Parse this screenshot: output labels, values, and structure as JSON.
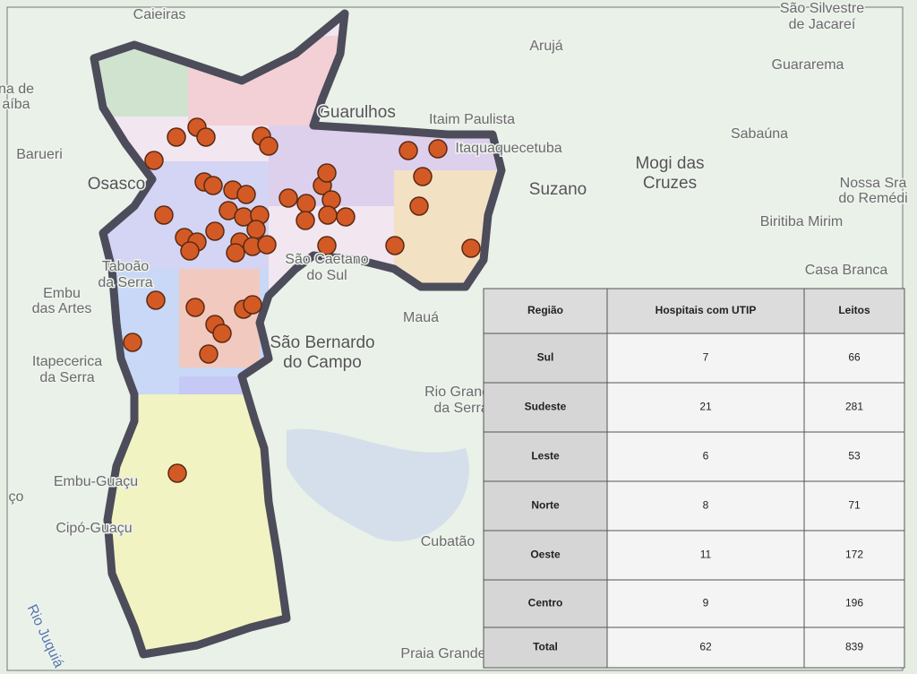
{
  "map": {
    "labels": [
      "Caieiras",
      "São Silvestre",
      "de Jacareí",
      "Arujá",
      "Guararema",
      "na de",
      "aíba",
      "Guarulhos",
      "Itaim Paulista",
      "Itaquaquecetuba",
      "Sabaúna",
      "Barueri",
      "Mogi das",
      "Cruzes",
      "Osasco",
      "Suzano",
      "Nossa Sra",
      "do Remédi",
      "Biritiba Mirim",
      "Casa Branca",
      "Taboão",
      "da Serra",
      "São Caetano",
      "do Sul",
      "Embu",
      "das Artes",
      "Mauá",
      "São Bernardo",
      "do Campo",
      "Itapecerica",
      "da Serra",
      "Rio Grande",
      "da Serra",
      "Embu-Guaçu",
      "ço",
      "Cipó-Guaçu",
      "Cubatão",
      "Praia Grande",
      "Rio Juquiá"
    ]
  },
  "table": {
    "header": [
      "Região",
      "Hospitais com UTIP",
      "Leitos"
    ],
    "rows": [
      [
        "Sul",
        7,
        66
      ],
      [
        "Sudeste",
        21,
        281
      ],
      [
        "Leste",
        6,
        53
      ],
      [
        "Norte",
        8,
        71
      ],
      [
        "Oeste",
        11,
        172
      ],
      [
        "Centro",
        9,
        196
      ],
      [
        "Total",
        62,
        839
      ]
    ]
  }
}
